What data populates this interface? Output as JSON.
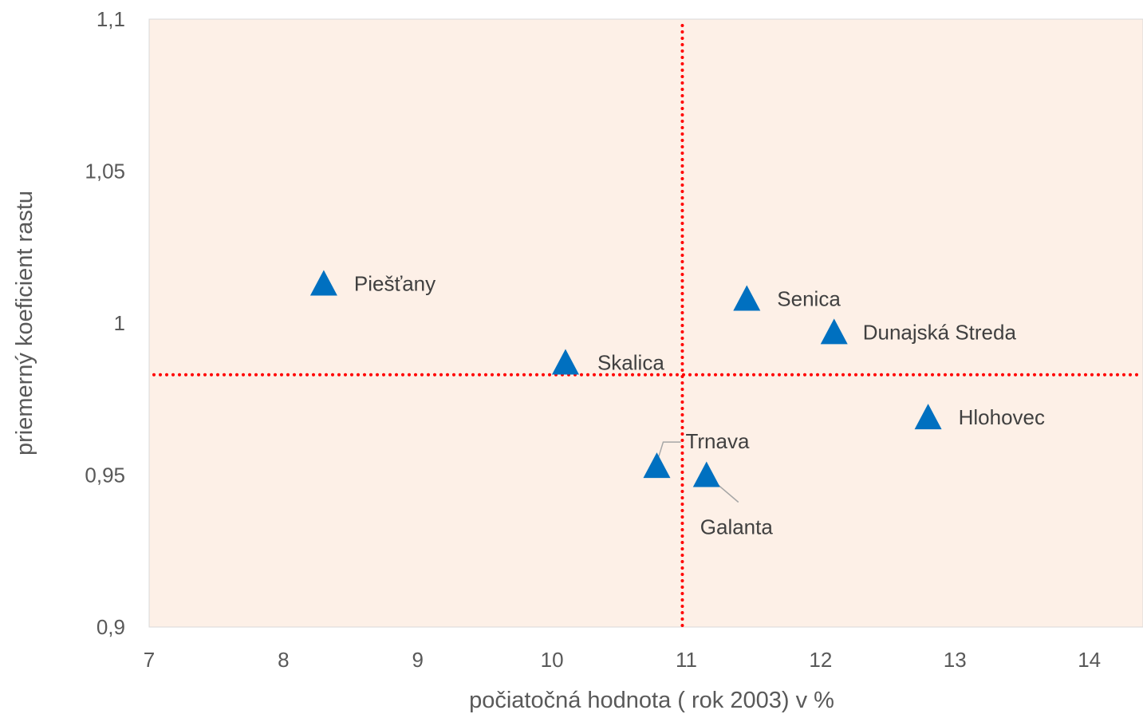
{
  "chart_data": {
    "type": "scatter",
    "xlabel": "počiatočná hodnota ( rok 2003) v %",
    "ylabel": "priemerný koeficient rastu",
    "xlim": [
      7,
      14.4
    ],
    "ylim": [
      0.9,
      1.1
    ],
    "x_ticks": [
      "7",
      "8",
      "9",
      "10",
      "11",
      "12",
      "13",
      "14"
    ],
    "y_ticks": [
      "0,9",
      "0,95",
      "1",
      "1,05",
      "1,1"
    ],
    "grid": false,
    "legend": "none",
    "marker": "triangle",
    "colors": {
      "marker": "#0070C0",
      "plot_background": "#FDF0E7",
      "reference_lines": "#FF0000",
      "leader_lines": "#A6A6A6"
    },
    "reference_lines": {
      "x": 10.97,
      "y": 0.983
    },
    "points": [
      {
        "label": "Piešťany",
        "x": 8.3,
        "y": 1.013
      },
      {
        "label": "Senica",
        "x": 11.45,
        "y": 1.008
      },
      {
        "label": "Dunajská Streda",
        "x": 12.1,
        "y": 0.997
      },
      {
        "label": "Skalica",
        "x": 10.1,
        "y": 0.987
      },
      {
        "label": "Hlohovec",
        "x": 12.8,
        "y": 0.969
      },
      {
        "label": "Trnava",
        "x": 10.78,
        "y": 0.953
      },
      {
        "label": "Galanta",
        "x": 11.15,
        "y": 0.95
      }
    ]
  }
}
